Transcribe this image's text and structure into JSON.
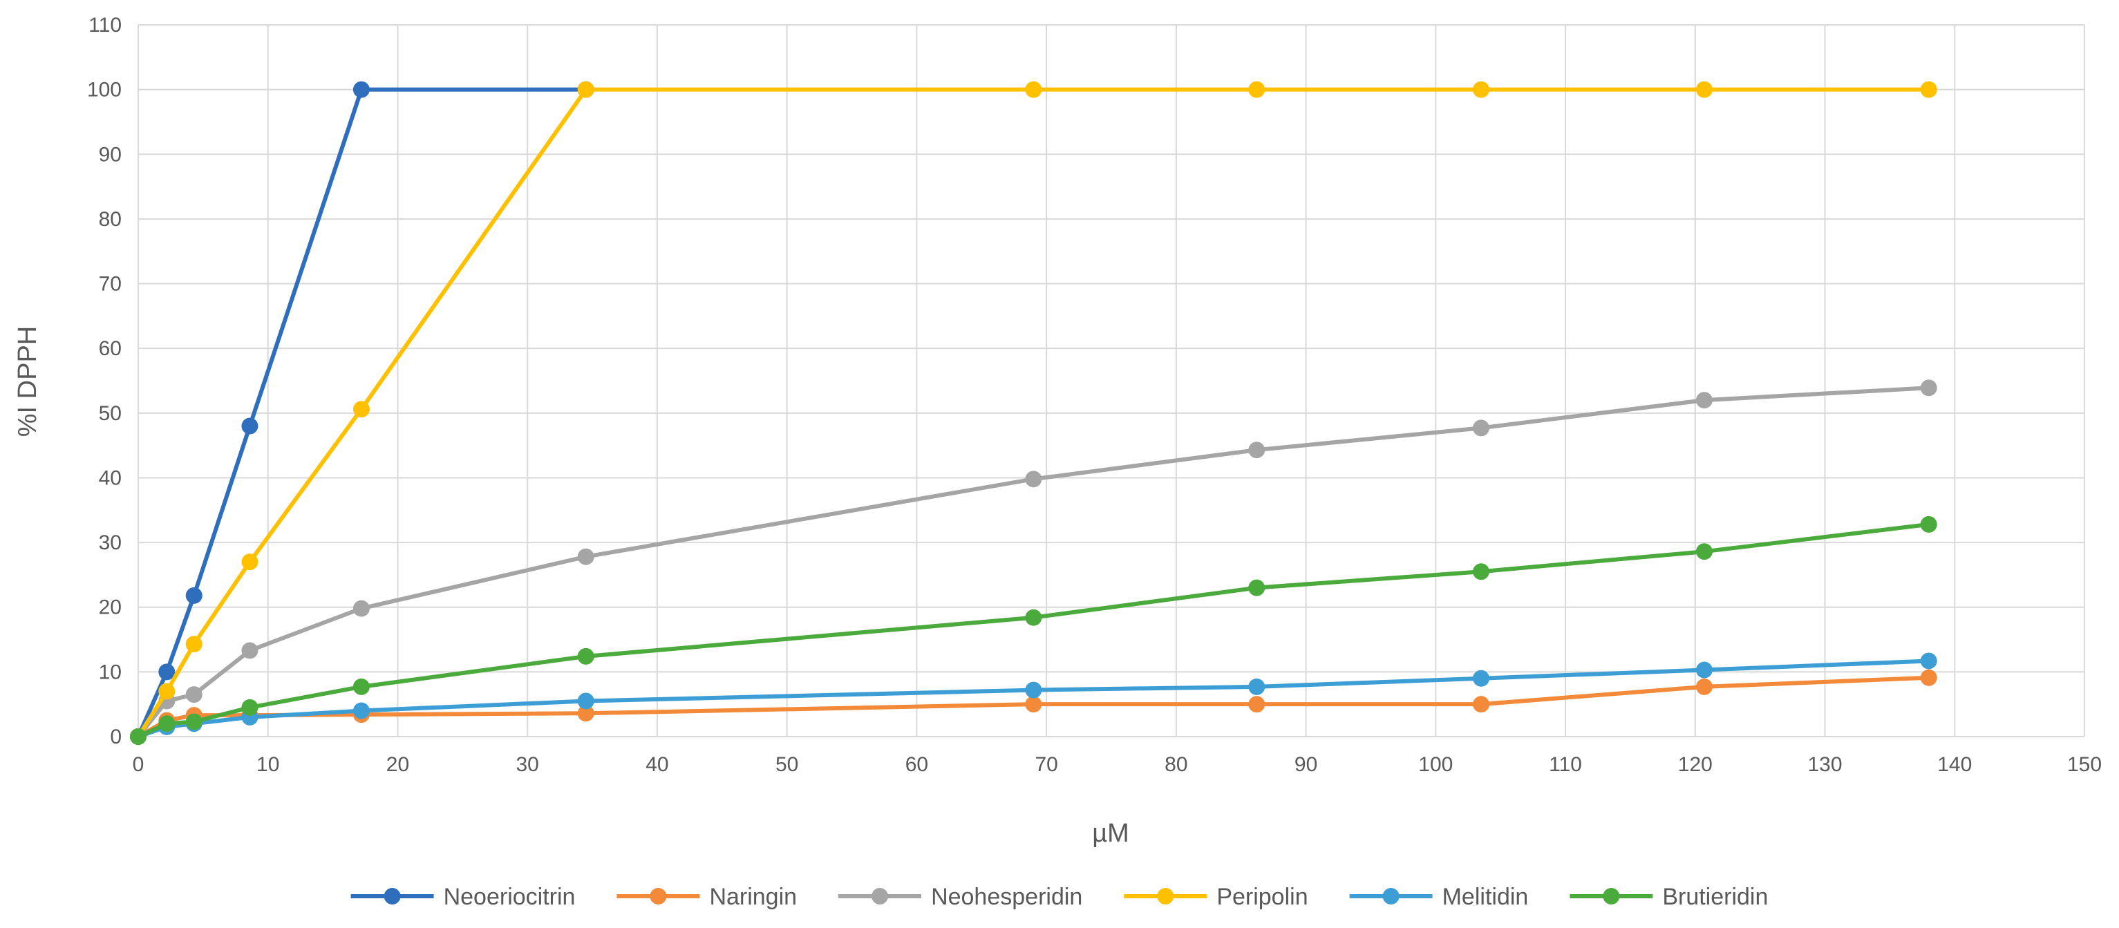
{
  "chart_data": {
    "type": "line",
    "title": "",
    "xlabel": "µM",
    "ylabel": "%I DPPH",
    "xlim": [
      0,
      150
    ],
    "ylim": [
      0,
      110
    ],
    "x_ticks": [
      "0",
      "10",
      "20",
      "30",
      "40",
      "50",
      "60",
      "70",
      "80",
      "90",
      "100",
      "110",
      "120",
      "130",
      "140",
      "150"
    ],
    "y_ticks": [
      "0",
      "10",
      "20",
      "30",
      "40",
      "50",
      "60",
      "70",
      "80",
      "90",
      "100",
      "110"
    ],
    "grid": true,
    "legend_position": "bottom",
    "series": [
      {
        "name": "Neoeriocitrin",
        "color": "#2E6EBD",
        "x": [
          0,
          2.2,
          4.3,
          8.6,
          17.2,
          34.5
        ],
        "y": [
          0,
          10,
          21.8,
          48,
          100,
          100
        ]
      },
      {
        "name": "Naringin",
        "color": "#F28A3A",
        "x": [
          0,
          2.2,
          4.3,
          8.6,
          17.2,
          34.5,
          69,
          86.2,
          103.5,
          120.7,
          138
        ],
        "y": [
          0,
          2.5,
          3.3,
          3.3,
          3.4,
          3.6,
          5,
          5,
          5,
          7.7,
          9.1
        ]
      },
      {
        "name": "Neohesperidin",
        "color": "#A5A5A5",
        "x": [
          0,
          2.2,
          4.3,
          8.6,
          17.2,
          34.5,
          69,
          86.2,
          103.5,
          120.7,
          138
        ],
        "y": [
          0,
          5.5,
          6.5,
          13.3,
          19.8,
          27.8,
          39.8,
          44.3,
          47.7,
          52,
          53.9
        ]
      },
      {
        "name": "Peripolin",
        "color": "#FFC000",
        "x": [
          0,
          2.2,
          4.3,
          8.6,
          17.2,
          34.5,
          69,
          86.2,
          103.5,
          120.7,
          138
        ],
        "y": [
          0,
          7,
          14.3,
          27,
          50.6,
          100,
          100,
          100,
          100,
          100,
          100
        ]
      },
      {
        "name": "Melitidin",
        "color": "#3D9ED6",
        "x": [
          0,
          2.2,
          4.3,
          8.6,
          17.2,
          34.5,
          69,
          86.2,
          103.5,
          120.7,
          138
        ],
        "y": [
          0,
          1.5,
          2,
          3,
          4,
          5.5,
          7.2,
          7.7,
          9,
          10.3,
          11.7
        ]
      },
      {
        "name": "Brutieridin",
        "color": "#4BAA3C",
        "x": [
          0,
          2.2,
          4.3,
          8.6,
          17.2,
          34.5,
          69,
          86.2,
          103.5,
          120.7,
          138
        ],
        "y": [
          0,
          2,
          2.3,
          4.5,
          7.7,
          12.4,
          18.4,
          23,
          25.5,
          28.6,
          32.8
        ]
      }
    ]
  }
}
